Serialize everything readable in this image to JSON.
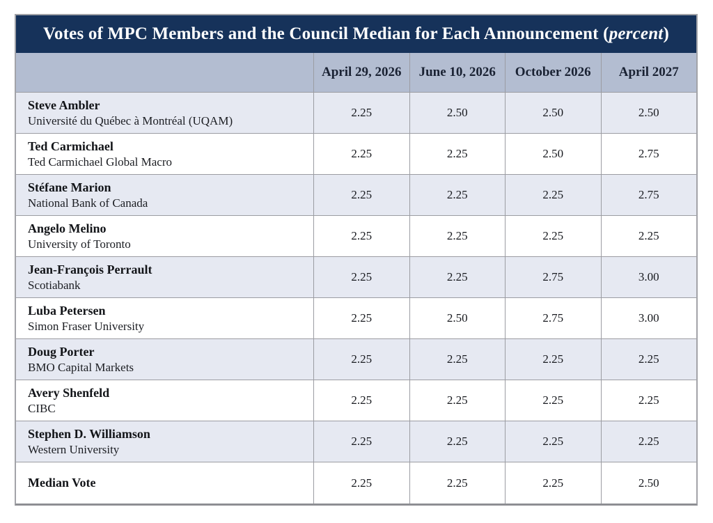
{
  "title": {
    "main": "Votes of MPC Members and the Council Median for Each Announcement ",
    "paren_open": "(",
    "emphasis": "percent",
    "paren_close": ")"
  },
  "table": {
    "columns": [
      "April 29, 2026",
      "June 10, 2026",
      "October 2026",
      "April 2027"
    ],
    "rows": [
      {
        "name": "Steve Ambler",
        "affiliation": "Université du Québec à Montréal (UQAM)",
        "votes": [
          "2.25",
          "2.50",
          "2.50",
          "2.50"
        ]
      },
      {
        "name": "Ted Carmichael",
        "affiliation": "Ted Carmichael Global Macro",
        "votes": [
          "2.25",
          "2.25",
          "2.50",
          "2.75"
        ]
      },
      {
        "name": "Stéfane Marion",
        "affiliation": "National Bank of Canada",
        "votes": [
          "2.25",
          "2.25",
          "2.25",
          "2.75"
        ]
      },
      {
        "name": "Angelo Melino",
        "affiliation": "University of Toronto",
        "votes": [
          "2.25",
          "2.25",
          "2.25",
          "2.25"
        ]
      },
      {
        "name": "Jean-François Perrault",
        "affiliation": "Scotiabank",
        "votes": [
          "2.25",
          "2.25",
          "2.75",
          "3.00"
        ]
      },
      {
        "name": "Luba Petersen",
        "affiliation": "Simon Fraser University",
        "votes": [
          "2.25",
          "2.50",
          "2.75",
          "3.00"
        ]
      },
      {
        "name": "Doug Porter",
        "affiliation": "BMO Capital Markets",
        "votes": [
          "2.25",
          "2.25",
          "2.25",
          "2.25"
        ]
      },
      {
        "name": "Avery Shenfeld",
        "affiliation": "CIBC",
        "votes": [
          "2.25",
          "2.25",
          "2.25",
          "2.25"
        ]
      },
      {
        "name": "Stephen D. Williamson",
        "affiliation": "Western University",
        "votes": [
          "2.25",
          "2.25",
          "2.25",
          "2.25"
        ]
      },
      {
        "name": "Median Vote",
        "affiliation": "",
        "votes": [
          "2.25",
          "2.25",
          "2.25",
          "2.50"
        ]
      }
    ]
  },
  "colors": {
    "title_bar_bg": "#16325A",
    "title_text": "#FFFFFF",
    "header_bg": "#B3BDD1",
    "row_alt_bg": "#E6E9F2",
    "row_bg": "#FFFFFF",
    "grid_border": "#9B9CA2",
    "outer_border": "#A2A3A8",
    "body_text": "#17191E"
  }
}
